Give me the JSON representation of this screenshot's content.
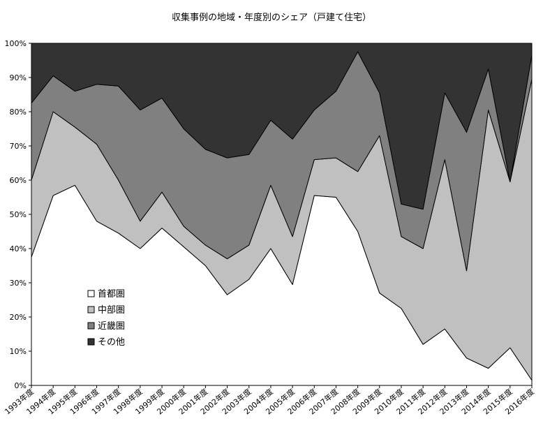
{
  "chart_data": {
    "type": "area",
    "stacked": true,
    "title": "収集事例の地域・年度別のシェア（戸建て住宅）",
    "xlabel": "",
    "ylabel": "",
    "ylim": [
      0,
      100
    ],
    "y_ticks": [
      "0%",
      "10%",
      "20%",
      "30%",
      "40%",
      "50%",
      "60%",
      "70%",
      "80%",
      "90%",
      "100%"
    ],
    "grid": false,
    "legend_position": "left-inside",
    "categories": [
      "1993年度",
      "1994年度",
      "1995年度",
      "1996年度",
      "1997年度",
      "1998年度",
      "1999年度",
      "2000年度",
      "2001年度",
      "2002年度",
      "2003年度",
      "2004年度",
      "2005年度",
      "2006年度",
      "2007年度",
      "2008年度",
      "2009年度",
      "2010年度",
      "2011年度",
      "2012年度",
      "2013年度",
      "2014年度",
      "2015年度",
      "2016年度"
    ],
    "series": [
      {
        "name": "首都圏",
        "color": "#ffffff",
        "values": [
          37.5,
          55.5,
          58.5,
          48,
          44.5,
          40,
          46,
          40.5,
          35,
          26.5,
          31,
          40,
          29.5,
          55.5,
          55,
          45,
          27,
          22.5,
          12,
          16.5,
          8,
          5,
          11,
          1.5
        ]
      },
      {
        "name": "中部圏",
        "color": "#c0c0c0",
        "values": [
          22.5,
          24.5,
          17,
          22.5,
          15.5,
          8,
          10.5,
          6,
          6,
          10.5,
          10,
          18.5,
          14,
          10.5,
          11.5,
          17.5,
          46,
          21,
          28,
          49.5,
          25.5,
          75.5,
          48.5,
          88
        ]
      },
      {
        "name": "近畿圏",
        "color": "#808080",
        "values": [
          22.5,
          10.5,
          10.5,
          17.5,
          27.5,
          32.5,
          27.5,
          28.5,
          28,
          29.5,
          26.5,
          19,
          28.5,
          14.5,
          19.5,
          35,
          12.5,
          9.5,
          11.5,
          19.5,
          40.5,
          12,
          0,
          7
        ]
      },
      {
        "name": "その他",
        "color": "#333333",
        "values": [
          17.5,
          9.5,
          14,
          12,
          12.5,
          19.5,
          16,
          25,
          31,
          33.5,
          32.5,
          22.5,
          28,
          19.5,
          14,
          2.5,
          14.5,
          47,
          48.5,
          14.5,
          26,
          7.5,
          40.5,
          3.5
        ]
      }
    ]
  }
}
